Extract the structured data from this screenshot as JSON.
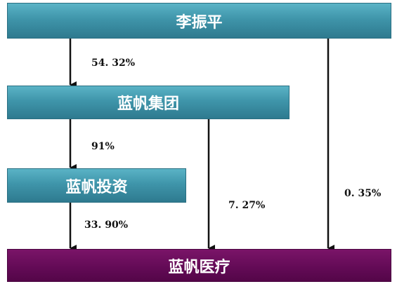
{
  "nodes": [
    {
      "label": "李振平"
    },
    {
      "label": "蓝帆集团"
    },
    {
      "label": "蓝帆投资"
    },
    {
      "label": "蓝帆医疗"
    }
  ],
  "edges": [
    {
      "label": "54. 32%"
    },
    {
      "label": "91%"
    },
    {
      "label": "33. 90%"
    },
    {
      "label": "7. 27%"
    },
    {
      "label": "0. 35%"
    }
  ]
}
